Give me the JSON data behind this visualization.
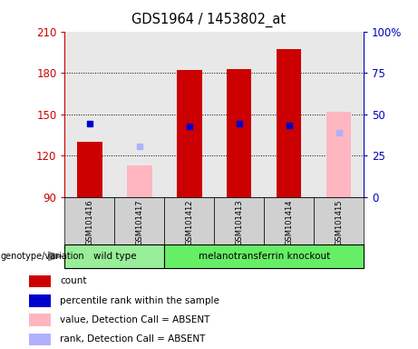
{
  "title": "GDS1964 / 1453802_at",
  "samples": [
    "GSM101416",
    "GSM101417",
    "GSM101412",
    "GSM101413",
    "GSM101414",
    "GSM101415"
  ],
  "ylim_left": [
    90,
    210
  ],
  "ylim_right": [
    0,
    100
  ],
  "yticks_left": [
    90,
    120,
    150,
    180,
    210
  ],
  "yticks_right": [
    0,
    25,
    50,
    75,
    100
  ],
  "count_color": "#cc0000",
  "percentile_color": "#0000cc",
  "absent_value_color": "#ffb6c1",
  "absent_rank_color": "#b0b0ff",
  "bar_width": 0.5,
  "count_values": [
    130,
    null,
    182,
    183,
    197,
    null
  ],
  "percentile_values": [
    143,
    null,
    141,
    143,
    142,
    null
  ],
  "absent_value_values": [
    null,
    113,
    null,
    null,
    null,
    152
  ],
  "absent_rank_values": [
    null,
    127,
    null,
    null,
    null,
    137
  ],
  "background_color": "#ffffff",
  "plot_bg_color": "#e8e8e8",
  "legend_items": [
    {
      "label": "count",
      "color": "#cc0000"
    },
    {
      "label": "percentile rank within the sample",
      "color": "#0000cc"
    },
    {
      "label": "value, Detection Call = ABSENT",
      "color": "#ffb6c1"
    },
    {
      "label": "rank, Detection Call = ABSENT",
      "color": "#b0b0ff"
    }
  ],
  "left_tick_color": "#cc0000",
  "right_tick_color": "#0000bb",
  "wild_type_color": "#99ee99",
  "knockout_color": "#66ee66",
  "label_bg_color": "#d0d0d0"
}
